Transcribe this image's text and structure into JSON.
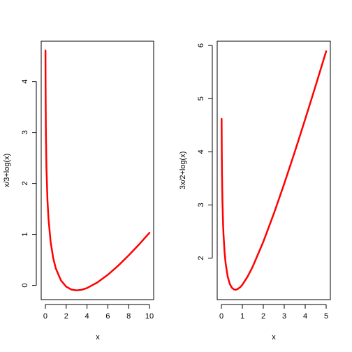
{
  "chart_data": [
    {
      "type": "line",
      "title": "",
      "xlabel": "x",
      "ylabel": "x/3+log(x)",
      "xlim": [
        -0.4,
        10.4
      ],
      "ylim": [
        -0.28,
        4.79
      ],
      "x_ticks": [
        0,
        2,
        4,
        6,
        8,
        10
      ],
      "y_ticks": [
        0,
        1,
        2,
        3,
        4
      ],
      "grid": false,
      "series": [
        {
          "color": "#ff0000",
          "x": [
            0.01,
            0.02,
            0.05,
            0.1,
            0.2,
            0.3,
            0.5,
            0.75,
            1,
            1.5,
            2,
            2.5,
            3,
            3.5,
            4,
            5,
            6,
            7,
            8,
            9,
            10
          ],
          "y": [
            4.608,
            3.919,
            3.012,
            2.336,
            1.676,
            1.304,
            0.86,
            0.538,
            0.333,
            0.095,
            -0.026,
            -0.083,
            -0.099,
            -0.086,
            -0.053,
            0.057,
            0.208,
            0.387,
            0.588,
            0.803,
            1.031
          ]
        }
      ]
    },
    {
      "type": "line",
      "title": "",
      "xlabel": "x",
      "ylabel": "3x/2+log(x)",
      "xlim": [
        -0.2,
        5.2
      ],
      "ylim": [
        1.22,
        6.08
      ],
      "x_ticks": [
        0,
        1,
        2,
        3,
        4,
        5
      ],
      "y_ticks": [
        2,
        3,
        4,
        5,
        6
      ],
      "grid": false,
      "series": [
        {
          "color": "#ff0000",
          "x": [
            0.01,
            0.02,
            0.03,
            0.05,
            0.08,
            0.1,
            0.15,
            0.2,
            0.3,
            0.4,
            0.5,
            0.6,
            0.667,
            0.75,
            0.9,
            1,
            1.25,
            1.5,
            2,
            2.5,
            3,
            3.5,
            4,
            4.5,
            5
          ],
          "y": [
            4.62,
            3.942,
            3.552,
            3.071,
            2.646,
            2.453,
            2.122,
            1.909,
            1.654,
            1.516,
            1.443,
            1.411,
            1.405,
            1.413,
            1.455,
            1.5,
            1.652,
            1.845,
            2.307,
            2.834,
            3.401,
            3.997,
            4.614,
            5.246,
            5.891
          ]
        }
      ]
    }
  ]
}
